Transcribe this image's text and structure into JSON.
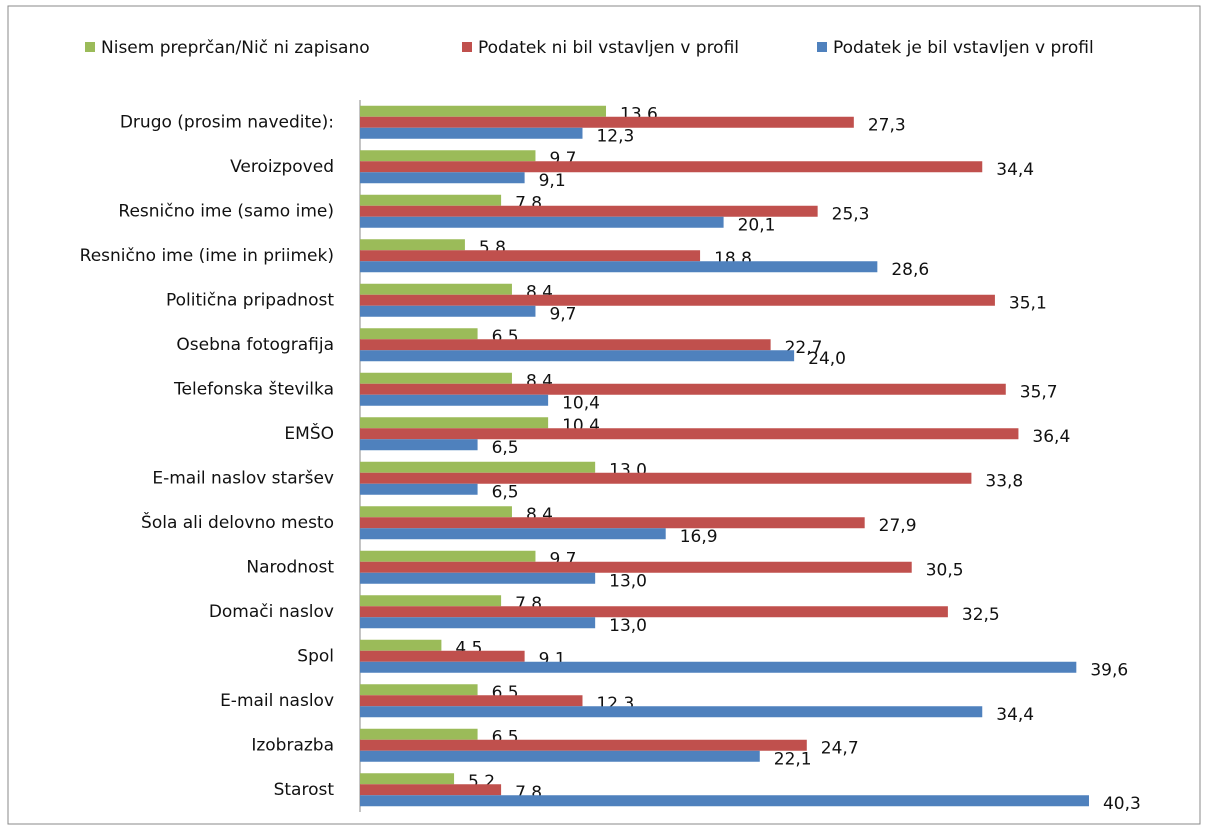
{
  "chart_data": {
    "type": "hbar",
    "categories": [
      "Drugo (prosim navedite):",
      "Veroizpoved",
      "Resnično ime (samo ime)",
      "Resnično ime (ime in priimek)",
      "Politična pripadnost",
      "Osebna fotografija",
      "Telefonska številka",
      "EMŠO",
      "E-mail naslov staršev",
      "Šola ali delovno mesto",
      "Narodnost",
      "Domači naslov",
      "Spol",
      "E-mail naslov",
      "Izobrazba",
      "Starost"
    ],
    "series": [
      {
        "name": "Nisem preprčan/Nič ni zapisano",
        "color": "#9bbb59",
        "values": [
          13.6,
          9.7,
          7.8,
          5.8,
          8.4,
          6.5,
          8.4,
          10.4,
          13.0,
          8.4,
          9.7,
          7.8,
          4.5,
          6.5,
          6.5,
          5.2
        ],
        "value_labels": [
          "13,6",
          "9,7",
          "7,8",
          "5,8",
          "8,4",
          "6,5",
          "8,4",
          "10,4",
          "13,0",
          "8,4",
          "9,7",
          "7,8",
          "4,5",
          "6,5",
          "6,5",
          "5,2"
        ]
      },
      {
        "name": "Podatek ni bil vstavljen v profil",
        "color": "#c0504d",
        "values": [
          27.3,
          34.4,
          25.3,
          18.8,
          35.1,
          22.7,
          35.7,
          36.4,
          33.8,
          27.9,
          30.5,
          32.5,
          9.1,
          12.3,
          24.7,
          7.8
        ],
        "value_labels": [
          "27,3",
          "34,4",
          "25,3",
          "18,8",
          "35,1",
          "22,7",
          "35,7",
          "36,4",
          "33,8",
          "27,9",
          "30,5",
          "32,5",
          "9,1",
          "12,3",
          "24,7",
          "7,8"
        ]
      },
      {
        "name": "Podatek je bil vstavljen v profil",
        "color": "#4f81bd",
        "values": [
          12.3,
          9.1,
          20.1,
          28.6,
          9.7,
          24.0,
          10.4,
          6.5,
          6.5,
          16.9,
          13.0,
          13.0,
          39.6,
          34.4,
          22.1,
          40.3
        ],
        "value_labels": [
          "12,3",
          "9,1",
          "20,1",
          "28,6",
          "9,7",
          "24,0",
          "10,4",
          "6,5",
          "6,5",
          "16,9",
          "13,0",
          "13,0",
          "39,6",
          "34,4",
          "22,1",
          "40,3"
        ]
      }
    ],
    "xlim": [
      0,
      45
    ],
    "legend": "top"
  }
}
